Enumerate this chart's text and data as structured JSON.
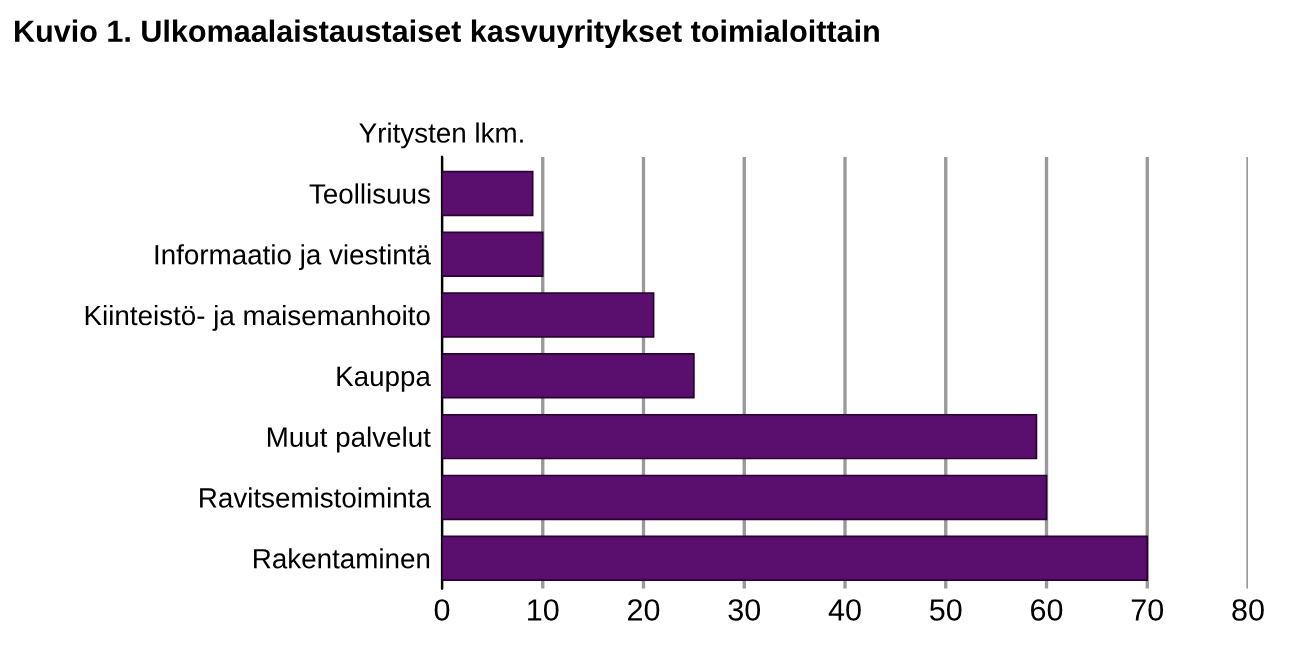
{
  "chart_data": {
    "type": "bar",
    "orientation": "horizontal",
    "title": "Kuvio 1. Ulkomaalaistaustaiset kasvuyritykset toimialoittain",
    "xlabel": "Yritysten lkm.",
    "categories": [
      "Teollisuus",
      "Informaatio ja viestintä",
      "Kiinteistö- ja maisemanhoito",
      "Kauppa",
      "Muut palvelut",
      "Ravitsemistoiminta",
      "Rakentaminen"
    ],
    "values": [
      9,
      10,
      21,
      25,
      59,
      60,
      70
    ],
    "color": "#5a0f6e",
    "xlim": [
      0,
      80
    ],
    "xticks": [
      0,
      10,
      20,
      30,
      40,
      50,
      60,
      70,
      80
    ],
    "grid": "x"
  }
}
